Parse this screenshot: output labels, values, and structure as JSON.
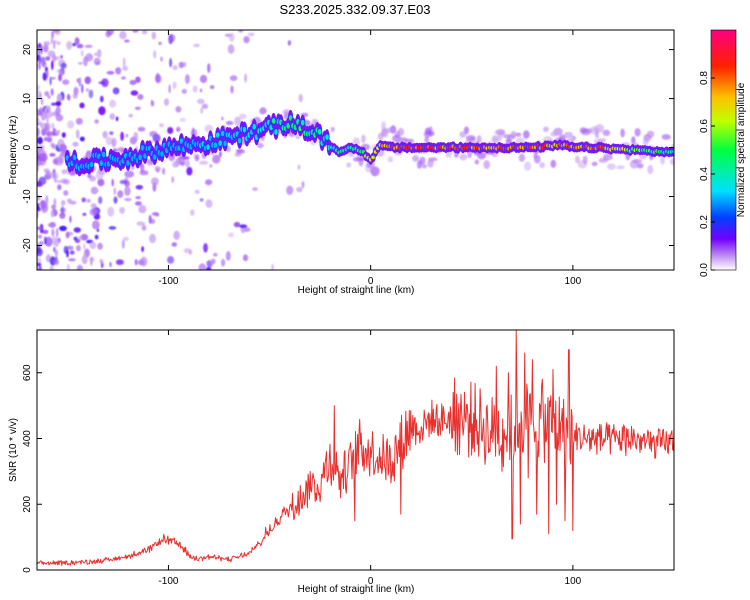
{
  "chart_data": [
    {
      "type": "heatmap",
      "title": "S233.2025.332.09.37.E03",
      "xlabel": "Height of straight line (km)",
      "ylabel": "Frequency (Hz)",
      "xlim": [
        -165,
        150
      ],
      "ylim": [
        -25,
        24
      ],
      "xticks": [
        -100,
        0,
        100
      ],
      "yticks": [
        -20,
        -10,
        0,
        10,
        20
      ],
      "colorbar": {
        "label": "Normalized spectral amplitude",
        "range": [
          0,
          1
        ],
        "ticks": [
          0.0,
          0.2,
          0.4,
          0.6,
          0.8
        ],
        "colormap": "rainbow",
        "colors": [
          "#ffffff",
          "#c8a0f0",
          "#7000ff",
          "#0040ff",
          "#00e0ff",
          "#00ff40",
          "#c0ff00",
          "#ffc000",
          "#ff2000",
          "#ff0080"
        ]
      },
      "ridge": {
        "x": [
          -140,
          -120,
          -100,
          -80,
          -60,
          -45,
          -38,
          -30,
          -25,
          -20,
          -15,
          -10,
          -5,
          0,
          5,
          10,
          20,
          40,
          60,
          80,
          95,
          100,
          110,
          130,
          150
        ],
        "frequency": [
          -3,
          -2,
          0,
          1,
          3,
          4.5,
          5,
          3.5,
          2,
          0.5,
          -1,
          0,
          -0.5,
          -2.5,
          0.5,
          0,
          0,
          0,
          0,
          0,
          0.5,
          0,
          0,
          -0.5,
          -1
        ],
        "amplitude": [
          0.22,
          0.25,
          0.3,
          0.32,
          0.38,
          0.45,
          0.55,
          0.5,
          0.45,
          0.42,
          0.45,
          0.5,
          0.55,
          0.72,
          0.78,
          0.85,
          0.9,
          0.9,
          0.88,
          0.85,
          0.8,
          0.82,
          0.9,
          0.6,
          0.45
        ]
      }
    },
    {
      "type": "line",
      "xlabel": "Height of straight line (km)",
      "ylabel": "SNR (10 * v/v)",
      "xlim": [
        -165,
        150
      ],
      "ylim": [
        0,
        730
      ],
      "xticks": [
        -100,
        0,
        100
      ],
      "yticks": [
        0,
        200,
        400,
        600
      ],
      "series": [
        {
          "name": "SNR",
          "color": "#e8302e",
          "x": [
            -165,
            -150,
            -140,
            -130,
            -120,
            -110,
            -102,
            -95,
            -88,
            -80,
            -70,
            -60,
            -52,
            -45,
            -38,
            -30,
            -25,
            -20,
            -15,
            -10,
            -5,
            0,
            5,
            10,
            15,
            20,
            25,
            30,
            35,
            40,
            50,
            60,
            70,
            75,
            80,
            90,
            100,
            105,
            110,
            120,
            130,
            140,
            150
          ],
          "values": [
            20,
            22,
            25,
            30,
            42,
            60,
            95,
            80,
            35,
            40,
            32,
            50,
            100,
            160,
            200,
            250,
            260,
            340,
            280,
            320,
            380,
            360,
            350,
            330,
            390,
            440,
            430,
            460,
            450,
            470,
            455,
            420,
            430,
            470,
            440,
            440,
            410,
            400,
            400,
            395,
            400,
            380,
            390
          ]
        }
      ],
      "spikes": {
        "x": [
          -52,
          -36,
          -30,
          -22,
          -18,
          -15,
          -8,
          15,
          62,
          65,
          68,
          70,
          72,
          74,
          76,
          78,
          80,
          82,
          85,
          88,
          90,
          92,
          94,
          96,
          98,
          100
        ],
        "values": [
          130,
          240,
          300,
          360,
          500,
          220,
          150,
          170,
          620,
          300,
          600,
          95,
          730,
          140,
          660,
          280,
          640,
          170,
          580,
          110,
          610,
          200,
          450,
          150,
          670,
          120
        ]
      }
    }
  ]
}
